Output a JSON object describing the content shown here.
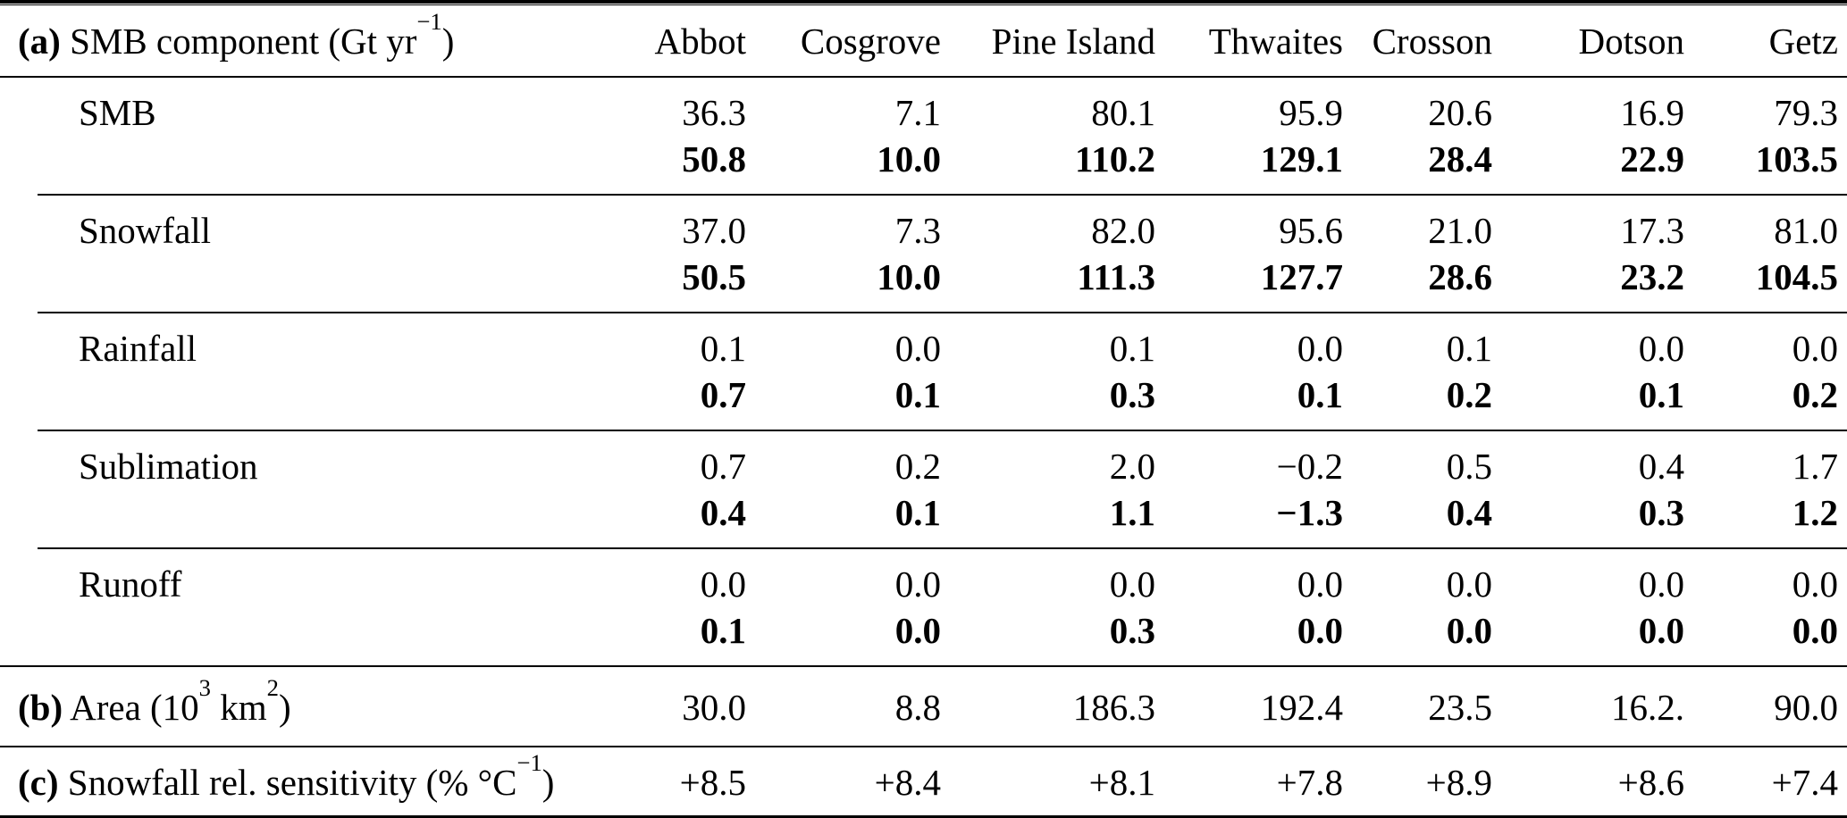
{
  "page": {
    "background": "#ffffff",
    "text_color": "#000000"
  },
  "table": {
    "header": {
      "marker": "(a)",
      "title_segments": [
        {
          "t": "SMB component (Gt yr"
        },
        {
          "t": "−1",
          "sup": true
        },
        {
          "t": ")"
        }
      ],
      "columns": [
        "Abbot",
        "Cosgrove",
        "Pine Island",
        "Thwaites",
        "Crosson",
        "Dotson",
        "Getz"
      ]
    },
    "section_a_rows": [
      {
        "label": "SMB",
        "plain": [
          "36.3",
          "7.1",
          "80.1",
          "95.9",
          "20.6",
          "16.9",
          "79.3"
        ],
        "bold": [
          "50.8",
          "10.0",
          "110.2",
          "129.1",
          "28.4",
          "22.9",
          "103.5"
        ]
      },
      {
        "label": "Snowfall",
        "plain": [
          "37.0",
          "7.3",
          "82.0",
          "95.6",
          "21.0",
          "17.3",
          "81.0"
        ],
        "bold": [
          "50.5",
          "10.0",
          "111.3",
          "127.7",
          "28.6",
          "23.2",
          "104.5"
        ]
      },
      {
        "label": "Rainfall",
        "plain": [
          "0.1",
          "0.0",
          "0.1",
          "0.0",
          "0.1",
          "0.0",
          "0.0"
        ],
        "bold": [
          "0.7",
          "0.1",
          "0.3",
          "0.1",
          "0.2",
          "0.1",
          "0.2"
        ]
      },
      {
        "label": "Sublimation",
        "plain": [
          "0.7",
          "0.2",
          "2.0",
          "−0.2",
          "0.5",
          "0.4",
          "1.7"
        ],
        "bold": [
          "0.4",
          "0.1",
          "1.1",
          "−1.3",
          "0.4",
          "0.3",
          "1.2"
        ]
      },
      {
        "label": "Runoff",
        "plain": [
          "0.0",
          "0.0",
          "0.0",
          "0.0",
          "0.0",
          "0.0",
          "0.0"
        ],
        "bold": [
          "0.1",
          "0.0",
          "0.3",
          "0.0",
          "0.0",
          "0.0",
          "0.0"
        ]
      }
    ],
    "section_b": {
      "marker": "(b)",
      "title_segments": [
        {
          "t": "Area (10"
        },
        {
          "t": "3",
          "sup": true
        },
        {
          "t": " km"
        },
        {
          "t": "2",
          "sup": true
        },
        {
          "t": ")"
        }
      ],
      "values": [
        "30.0",
        "8.8",
        "186.3",
        "192.4",
        "23.5",
        "16.2.",
        "90.0"
      ]
    },
    "section_c": {
      "marker": "(c)",
      "title_segments": [
        {
          "t": "Snowfall rel. sensitivity (% °C"
        },
        {
          "t": "−1",
          "sup": true
        },
        {
          "t": ")"
        }
      ],
      "values": [
        "+8.5",
        "+8.4",
        "+8.1",
        "+7.8",
        "+8.9",
        "+8.6",
        "+7.4"
      ]
    }
  }
}
